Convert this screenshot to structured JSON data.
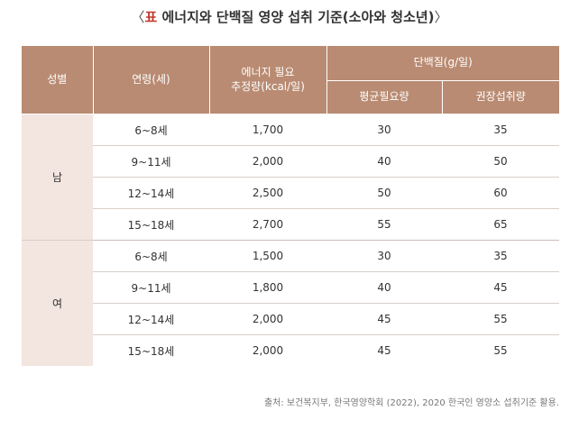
{
  "title": {
    "open": "〈",
    "mark": "표",
    "text": " 에너지와 단백질 영양 섭취 기준(소아와 청소년)",
    "close": "〉"
  },
  "table": {
    "headers": {
      "gender": "성별",
      "age": "연령(세)",
      "energy_line1": "에너지 필요",
      "energy_line2": "추정량(kcal/일)",
      "protein": "단백질(g/일)",
      "protein_avg": "평균필요량",
      "protein_rec": "권장섭취량"
    },
    "groups": [
      {
        "gender": "남",
        "rows": [
          {
            "age": "6~8세",
            "energy": "1,700",
            "avg": "30",
            "rec": "35"
          },
          {
            "age": "9~11세",
            "energy": "2,000",
            "avg": "40",
            "rec": "50"
          },
          {
            "age": "12~14세",
            "energy": "2,500",
            "avg": "50",
            "rec": "60"
          },
          {
            "age": "15~18세",
            "energy": "2,700",
            "avg": "55",
            "rec": "65"
          }
        ]
      },
      {
        "gender": "여",
        "rows": [
          {
            "age": "6~8세",
            "energy": "1,500",
            "avg": "30",
            "rec": "35"
          },
          {
            "age": "9~11세",
            "energy": "1,800",
            "avg": "40",
            "rec": "45"
          },
          {
            "age": "12~14세",
            "energy": "2,000",
            "avg": "45",
            "rec": "55"
          },
          {
            "age": "15~18세",
            "energy": "2,000",
            "avg": "45",
            "rec": "55"
          }
        ]
      }
    ]
  },
  "source": "출처: 보건복지부, 한국영양학회 (2022), 2020 한국인 영양소 섭취기준 활용.",
  "colors": {
    "header_bg": "#b98b72",
    "gender_cell_bg": "#f3e5e0",
    "title_mark": "#c0392b"
  }
}
